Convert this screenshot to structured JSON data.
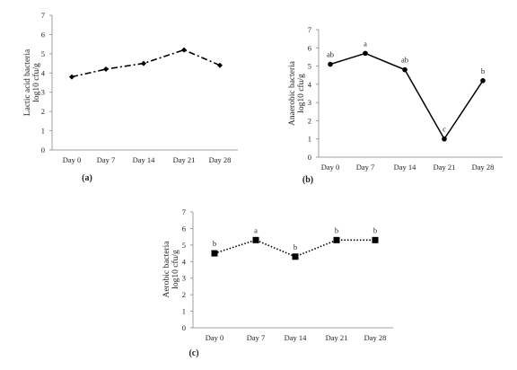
{
  "chart_data": [
    {
      "type": "line",
      "panel_label": "(a)",
      "ylabel_line1": "Lactic acid bacteria",
      "ylabel_line2": "log10 cfu/g",
      "categories": [
        "Day 0",
        "Day 7",
        "Day 14",
        "Day 21",
        "Day 28"
      ],
      "values": [
        3.8,
        4.2,
        4.5,
        5.2,
        4.4
      ],
      "significance": [
        "",
        "",
        "",
        "",
        ""
      ],
      "ylim": [
        0,
        7
      ],
      "yticks": [
        "0",
        "1",
        "2",
        "3",
        "4",
        "5",
        "6",
        "7"
      ],
      "line_style": "dash-dot",
      "marker": "diamond",
      "color": "#000000",
      "grid": false
    },
    {
      "type": "line",
      "panel_label": "(b)",
      "ylabel_line1": "Anaerobic bacteria",
      "ylabel_line2": "log10 cfu/g",
      "categories": [
        "Day 0",
        "Day 7",
        "Day 14",
        "Day 21",
        "Day 28"
      ],
      "values": [
        5.1,
        5.7,
        4.8,
        1.0,
        4.2
      ],
      "significance": [
        "ab",
        "a",
        "ab",
        "c",
        "b"
      ],
      "ylim": [
        0,
        7
      ],
      "yticks": [
        "0",
        "1",
        "2",
        "3",
        "4",
        "5",
        "6",
        "7"
      ],
      "line_style": "solid",
      "marker": "circle",
      "color": "#000000",
      "grid": false
    },
    {
      "type": "line",
      "panel_label": "(c)",
      "ylabel_line1": "Aerobic bacteria",
      "ylabel_line2": "log10 cfu/g",
      "categories": [
        "Day 0",
        "Day 7",
        "Day 14",
        "Day 21",
        "Day 28"
      ],
      "values": [
        4.5,
        5.3,
        4.3,
        5.3,
        5.3
      ],
      "significance": [
        "b",
        "a",
        "b",
        "b",
        "b"
      ],
      "ylim": [
        0,
        7
      ],
      "yticks": [
        "0",
        "1",
        "2",
        "3",
        "4",
        "5",
        "6",
        "7"
      ],
      "line_style": "dotted",
      "marker": "square",
      "color": "#000000",
      "grid": false
    }
  ]
}
